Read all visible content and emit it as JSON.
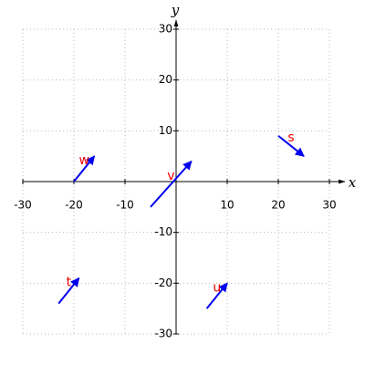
{
  "chart_data": {
    "type": "quiver",
    "x_label": "x",
    "y_label": "y",
    "xlim": [
      -30,
      30
    ],
    "ylim": [
      -30,
      30
    ],
    "xticks": [
      -30,
      -20,
      -10,
      10,
      20,
      30
    ],
    "yticks": [
      -30,
      -20,
      -10,
      10,
      20,
      30
    ],
    "grid": true,
    "color": "#0000ee",
    "label_color": "#ee0000",
    "vectors": [
      {
        "label": "w",
        "x": -20,
        "y": 0,
        "dx": 4,
        "dy": 5
      },
      {
        "label": "v",
        "x": -5,
        "y": -5,
        "dx": 8,
        "dy": 9
      },
      {
        "label": "s",
        "x": 20,
        "y": 9,
        "dx": 5,
        "dy": -4
      },
      {
        "label": "t",
        "x": -23,
        "y": -24,
        "dx": 4,
        "dy": 5
      },
      {
        "label": "u",
        "x": 6,
        "y": -25,
        "dx": 4,
        "dy": 5
      }
    ]
  }
}
